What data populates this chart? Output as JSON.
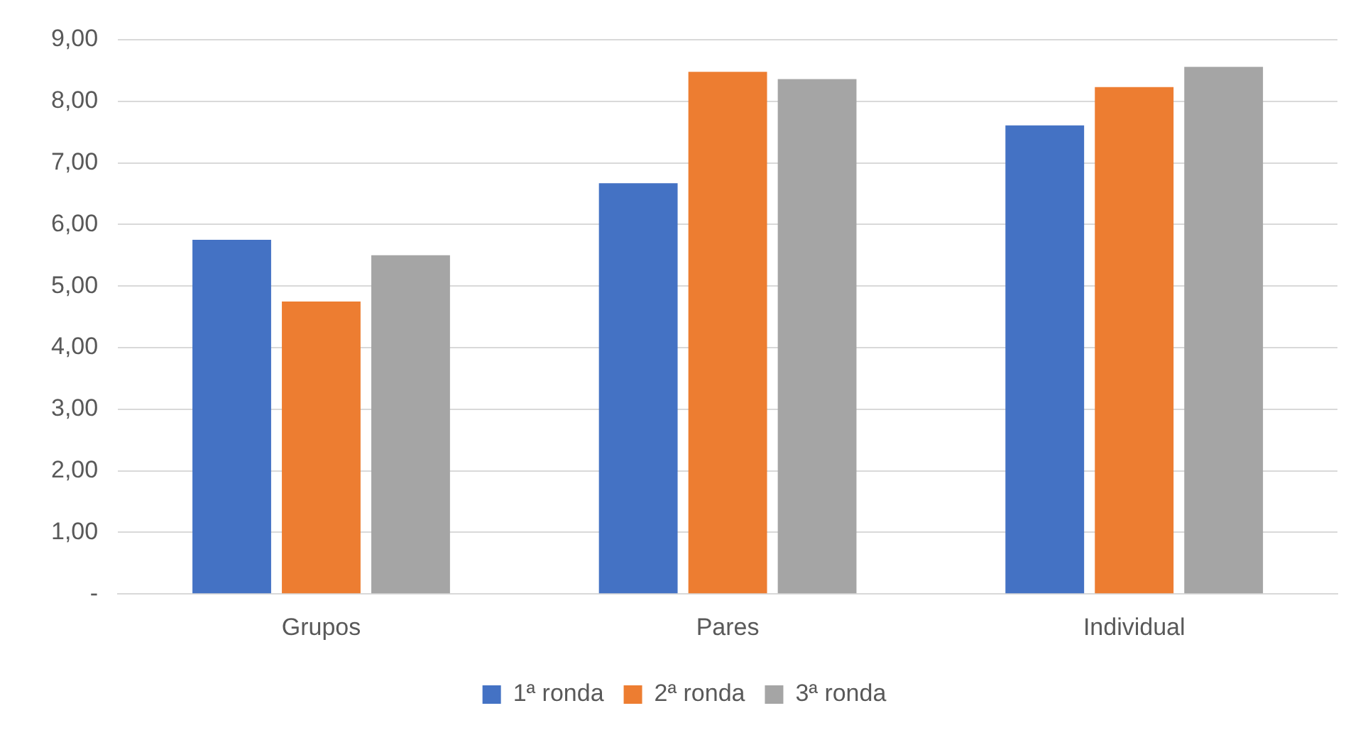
{
  "chart_data": {
    "type": "bar",
    "categories": [
      "Grupos",
      "Pares",
      "Individual"
    ],
    "series": [
      {
        "name": "1ª ronda",
        "color": "#4472c4",
        "values": [
          5.75,
          6.67,
          7.61
        ]
      },
      {
        "name": "2ª ronda",
        "color": "#ed7d31",
        "values": [
          4.75,
          8.48,
          8.23
        ]
      },
      {
        "name": "3ª ronda",
        "color": "#a5a5a5",
        "values": [
          5.5,
          8.36,
          8.56
        ]
      }
    ],
    "ylim": [
      0,
      9
    ],
    "yticks": [
      {
        "value": 0,
        "label": "-"
      },
      {
        "value": 1,
        "label": "1,00"
      },
      {
        "value": 2,
        "label": "2,00"
      },
      {
        "value": 3,
        "label": "3,00"
      },
      {
        "value": 4,
        "label": "4,00"
      },
      {
        "value": 5,
        "label": "5,00"
      },
      {
        "value": 6,
        "label": "6,00"
      },
      {
        "value": 7,
        "label": "7,00"
      },
      {
        "value": 8,
        "label": "8,00"
      },
      {
        "value": 9,
        "label": "9,00"
      }
    ],
    "grid": "y",
    "legend": "bottom"
  }
}
